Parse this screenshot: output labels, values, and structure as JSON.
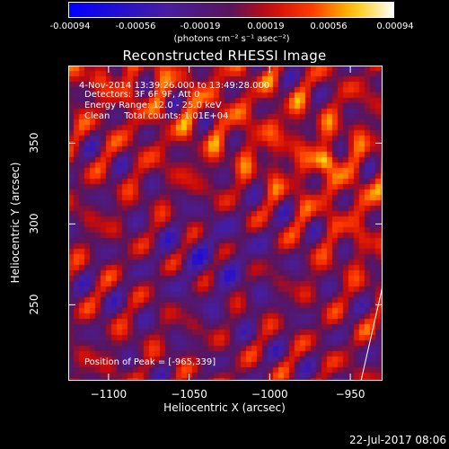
{
  "chart_data": {
    "type": "heatmap",
    "title": "Reconstructed RHESSI Image",
    "xlabel": "Heliocentric X (arcsec)",
    "ylabel": "Heliocentric Y (arcsec)",
    "xlim": [
      -1125,
      -930
    ],
    "ylim": [
      203,
      398
    ],
    "xticks": [
      -1100,
      -1050,
      -1000,
      -950
    ],
    "yticks": [
      250,
      300,
      350
    ],
    "colorbar": {
      "ticks": [
        "-0.00094",
        "-0.00056",
        "-0.00019",
        "0.00019",
        "0.00056",
        "0.00094"
      ],
      "units": "(photons cm⁻² s⁻¹ asec⁻²)",
      "range": [
        -0.00094,
        0.00094
      ]
    },
    "annotations": {
      "time_range": "4-Nov-2014 13:39:26.000 to 13:49:28.000",
      "detectors": "Detectors: 3F 6F 9F, Att 0",
      "energy": "Energy Range: 12.0 - 25.0 keV",
      "clean": "Clean     Total counts: 1.01E+04",
      "peak": "Position of Peak = [-965,339]"
    },
    "peak_position": [
      -965,
      339
    ]
  },
  "footer": {
    "date": "22-Jul-2017 08:06"
  }
}
